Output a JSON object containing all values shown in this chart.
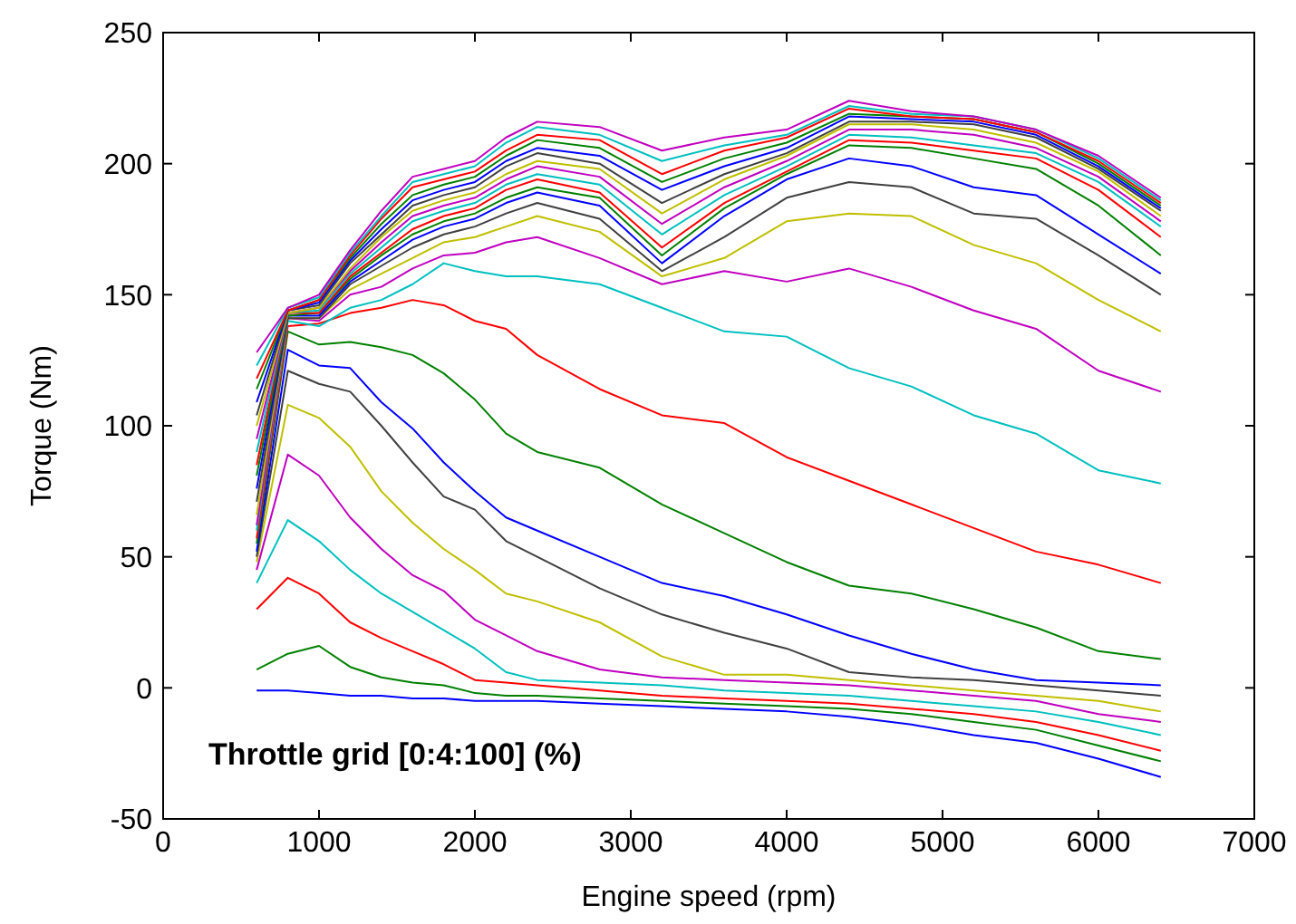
{
  "chart_data": {
    "type": "line",
    "xlabel": "Engine speed (rpm)",
    "ylabel": "Torque (Nm)",
    "annotations": [
      "Throttle grid [0:4:100] (%)"
    ],
    "x": [
      600,
      800,
      1000,
      1200,
      1400,
      1600,
      1800,
      2000,
      2200,
      2400,
      2800,
      3200,
      3600,
      4000,
      4400,
      4800,
      5200,
      5600,
      6000,
      6400
    ],
    "xlim": [
      0,
      7000
    ],
    "xticks": [
      0,
      1000,
      2000,
      3000,
      4000,
      5000,
      6000,
      7000
    ],
    "ylim": [
      -50,
      250
    ],
    "yticks": [
      -50,
      0,
      50,
      100,
      150,
      200,
      250
    ],
    "grid": false,
    "marker": "none",
    "line_style": "solid",
    "series": [
      {
        "color": "#0000ff",
        "values": [
          -1,
          -1,
          -2,
          -3,
          -3,
          -4,
          -4,
          -5,
          -5,
          -5,
          -6,
          -7,
          -8,
          -9,
          -11,
          -14,
          -18,
          -21,
          -27,
          -34
        ]
      },
      {
        "color": "#008000",
        "values": [
          7,
          13,
          16,
          8,
          4,
          2,
          1,
          -2,
          -3,
          -3,
          -4,
          -5,
          -6,
          -7,
          -8,
          -10,
          -13,
          -16,
          -22,
          -28
        ]
      },
      {
        "color": "#ff0000",
        "values": [
          30,
          42,
          36,
          25,
          19,
          14,
          9,
          3,
          2,
          1,
          -1,
          -3,
          -4,
          -5,
          -6,
          -8,
          -10,
          -13,
          -18,
          -24
        ]
      },
      {
        "color": "#00bfbf",
        "values": [
          40,
          64,
          56,
          45,
          36,
          29,
          22,
          15,
          6,
          3,
          2,
          1,
          -1,
          -2,
          -3,
          -5,
          -7,
          -9,
          -13,
          -18
        ]
      },
      {
        "color": "#bf00bf",
        "values": [
          45,
          89,
          81,
          65,
          53,
          43,
          37,
          26,
          20,
          14,
          7,
          4,
          3,
          2,
          1,
          -1,
          -3,
          -5,
          -10,
          -13
        ]
      },
      {
        "color": "#bfbf00",
        "values": [
          48,
          108,
          103,
          92,
          75,
          63,
          53,
          45,
          36,
          33,
          25,
          12,
          5,
          5,
          3,
          1,
          -1,
          -3,
          -5,
          -9
        ]
      },
      {
        "color": "#404040",
        "values": [
          50,
          121,
          116,
          113,
          100,
          86,
          73,
          68,
          56,
          50,
          38,
          28,
          21,
          15,
          6,
          4,
          3,
          1,
          -1,
          -3
        ]
      },
      {
        "color": "#0000ff",
        "values": [
          52,
          129,
          123,
          122,
          109,
          99,
          86,
          75,
          65,
          60,
          50,
          40,
          35,
          28,
          20,
          13,
          7,
          3,
          2,
          1
        ]
      },
      {
        "color": "#008000",
        "values": [
          55,
          136,
          131,
          132,
          130,
          127,
          120,
          110,
          97,
          90,
          84,
          70,
          59,
          48,
          39,
          36,
          30,
          23,
          14,
          11
        ]
      },
      {
        "color": "#ff0000",
        "values": [
          57,
          138,
          139,
          143,
          145,
          148,
          146,
          140,
          137,
          127,
          114,
          104,
          101,
          88,
          79,
          70,
          61,
          52,
          47,
          40
        ]
      },
      {
        "color": "#00bfbf",
        "values": [
          60,
          140,
          138,
          145,
          148,
          154,
          162,
          159,
          157,
          157,
          154,
          145,
          136,
          134,
          122,
          115,
          104,
          97,
          83,
          78
        ]
      },
      {
        "color": "#bf00bf",
        "values": [
          62,
          141,
          140,
          150,
          153,
          160,
          165,
          166,
          170,
          172,
          164,
          154,
          159,
          155,
          160,
          153,
          144,
          137,
          121,
          113
        ]
      },
      {
        "color": "#bfbf00",
        "values": [
          66,
          141,
          141,
          152,
          158,
          164,
          170,
          172,
          176,
          180,
          174,
          157,
          164,
          178,
          181,
          180,
          169,
          162,
          148,
          136
        ]
      },
      {
        "color": "#404040",
        "values": [
          71,
          141,
          141,
          154,
          161,
          168,
          173,
          176,
          181,
          185,
          179,
          159,
          172,
          187,
          193,
          191,
          181,
          179,
          165,
          150
        ]
      },
      {
        "color": "#0000ff",
        "values": [
          76,
          142,
          142,
          155,
          163,
          171,
          176,
          179,
          185,
          189,
          184,
          162,
          180,
          194,
          202,
          199,
          191,
          188,
          173,
          158
        ]
      },
      {
        "color": "#008000",
        "values": [
          81,
          142,
          143,
          156,
          165,
          173,
          178,
          181,
          187,
          191,
          187,
          165,
          183,
          196,
          207,
          206,
          202,
          198,
          184,
          165
        ]
      },
      {
        "color": "#ff0000",
        "values": [
          85,
          143,
          143,
          157,
          166,
          175,
          180,
          183,
          190,
          194,
          189,
          168,
          185,
          197,
          209,
          208,
          205,
          202,
          190,
          172
        ]
      },
      {
        "color": "#00bfbf",
        "values": [
          90,
          143,
          144,
          158,
          168,
          178,
          182,
          185,
          192,
          196,
          192,
          173,
          188,
          199,
          211,
          210,
          207,
          204,
          193,
          176
        ]
      },
      {
        "color": "#bf00bf",
        "values": [
          95,
          143,
          145,
          159,
          170,
          180,
          184,
          187,
          194,
          199,
          195,
          177,
          191,
          201,
          213,
          213,
          211,
          206,
          195,
          178
        ]
      },
      {
        "color": "#bfbf00",
        "values": [
          100,
          143,
          145,
          160,
          172,
          182,
          186,
          189,
          196,
          201,
          198,
          181,
          194,
          203,
          215,
          215,
          213,
          208,
          197,
          180
        ]
      },
      {
        "color": "#404040",
        "values": [
          104,
          144,
          146,
          162,
          173,
          184,
          188,
          191,
          199,
          204,
          200,
          185,
          196,
          204,
          216,
          216,
          215,
          210,
          198,
          182
        ]
      },
      {
        "color": "#0000ff",
        "values": [
          109,
          144,
          147,
          163,
          175,
          186,
          190,
          193,
          201,
          206,
          203,
          190,
          199,
          206,
          218,
          217,
          216,
          211,
          199,
          183
        ]
      },
      {
        "color": "#008000",
        "values": [
          114,
          144,
          148,
          164,
          177,
          188,
          192,
          195,
          203,
          209,
          206,
          193,
          202,
          208,
          219,
          218,
          217,
          212,
          200,
          184
        ]
      },
      {
        "color": "#ff0000",
        "values": [
          118,
          144,
          148,
          165,
          179,
          191,
          194,
          197,
          205,
          211,
          209,
          196,
          205,
          210,
          221,
          218,
          217,
          212,
          201,
          185
        ]
      },
      {
        "color": "#00bfbf",
        "values": [
          123,
          145,
          149,
          166,
          180,
          193,
          196,
          199,
          208,
          214,
          211,
          201,
          207,
          211,
          222,
          219,
          218,
          213,
          202,
          186
        ]
      },
      {
        "color": "#bf00bf",
        "values": [
          128,
          145,
          150,
          167,
          182,
          195,
          198,
          201,
          210,
          216,
          214,
          205,
          210,
          213,
          224,
          220,
          218,
          213,
          203,
          187
        ]
      }
    ]
  }
}
